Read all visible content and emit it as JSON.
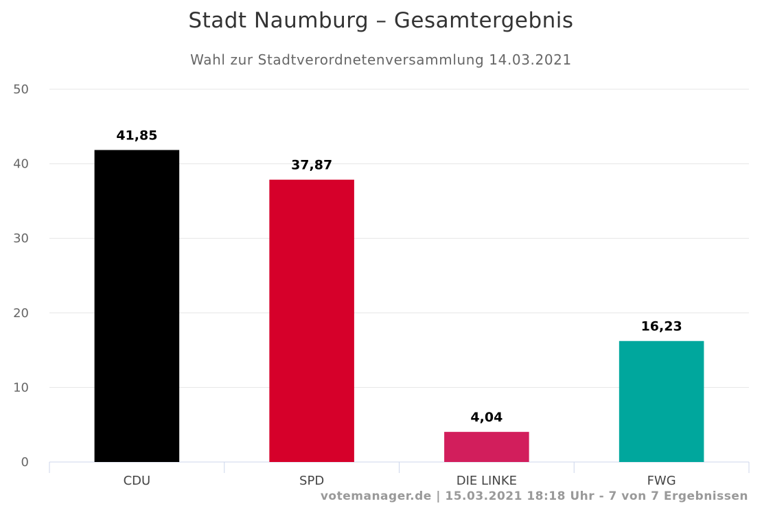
{
  "chart_data": {
    "type": "bar",
    "title": "Stadt Naumburg – Gesamtergebnis",
    "subtitle": "Wahl zur Stadtverordnetenversammlung 14.03.2021",
    "categories": [
      "CDU",
      "SPD",
      "DIE LINKE",
      "FWG"
    ],
    "values": [
      41.85,
      37.87,
      4.04,
      16.23
    ],
    "value_labels": [
      "41,85",
      "37,87",
      "4,04",
      "16,23"
    ],
    "colors": [
      "#000000",
      "#d6002a",
      "#d21e5c",
      "#00a79d"
    ],
    "ylim": [
      0,
      50
    ],
    "yticks": [
      0,
      10,
      20,
      30,
      40,
      50
    ],
    "xlabel": "",
    "ylabel": "",
    "grid": true,
    "legend": "none"
  },
  "credits": "votemanager.de | 15.03.2021 18:18 Uhr - 7 von 7 Ergebnissen"
}
